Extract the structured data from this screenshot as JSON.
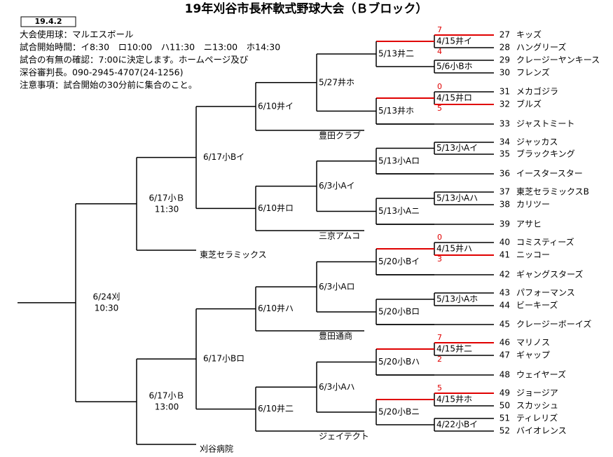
{
  "header": {
    "title": "19年刈谷市長杯軟式野球大会（Ｂブロック）",
    "date_box": "19.4.2",
    "notes": [
      "大会使用球：マルエスボール",
      "試合開始時間：イ8:30　ロ10:00　ハ11:30　ニ13:00　ホ14:30",
      "試合の有無の確認：7:00に決定します。ホームページ及び",
      "深谷審判長。090-2945-4707(24-1256)",
      "注意事項：試合開始の30分前に集合のこと。"
    ]
  },
  "teams": [
    {
      "number": 27,
      "name": "キッズ"
    },
    {
      "number": 28,
      "name": "ハングリーズ"
    },
    {
      "number": 29,
      "name": "クレージーヤンキース"
    },
    {
      "number": 30,
      "name": "フレンズ"
    },
    {
      "number": 31,
      "name": "メカゴジラ"
    },
    {
      "number": 32,
      "name": "ブルズ"
    },
    {
      "number": 33,
      "name": "ジャストミート"
    },
    {
      "number": 34,
      "name": "ジャッカス"
    },
    {
      "number": 35,
      "name": "ブラックキング"
    },
    {
      "number": 36,
      "name": "イースタースター"
    },
    {
      "number": 37,
      "name": "東芝セラミックスB"
    },
    {
      "number": 38,
      "name": "カリツー"
    },
    {
      "number": 39,
      "name": "アサヒ"
    },
    {
      "number": 40,
      "name": "コミスティーズ"
    },
    {
      "number": 41,
      "name": "ニッコー"
    },
    {
      "number": 42,
      "name": "ギャングスターズ"
    },
    {
      "number": 43,
      "name": "パフォーマンス"
    },
    {
      "number": 44,
      "name": "ビーキーズ"
    },
    {
      "number": 45,
      "name": "クレージーボーイズ"
    },
    {
      "number": 46,
      "name": "マリノス"
    },
    {
      "number": 47,
      "name": "ギャップ"
    },
    {
      "number": 48,
      "name": "ウェイヤーズ"
    },
    {
      "number": 49,
      "name": "ジョージア"
    },
    {
      "number": 50,
      "name": "スカッシュ"
    },
    {
      "number": 51,
      "name": "ティレリズ"
    },
    {
      "number": 52,
      "name": "バイオレンス"
    }
  ],
  "round1": [
    "4/15井イ",
    "5/6小Bホ",
    "4/15井ロ",
    "5/13小Aイ",
    "5/13小Aハ",
    "4/15井ハ",
    "5/13小Aホ",
    "4/15井二",
    "4/15井ホ",
    "4/22小Bイ"
  ],
  "scores": [
    {
      "top": 7,
      "bottom": 4
    },
    {
      "top": 0,
      "bottom": 5
    },
    {
      "top": 0,
      "bottom": 3
    },
    {
      "top": 7,
      "bottom": 2
    },
    {
      "top": 5
    }
  ],
  "round2": [
    "5/13井二",
    "5/13井ホ",
    "5/13小Aロ",
    "5/13小Aニ",
    "5/20小Bイ",
    "5/20小Bロ",
    "5/20小Bハ",
    "5/20小Bニ"
  ],
  "round3": [
    "5/27井ホ",
    "6/3小Aイ",
    "6/3小Aロ",
    "6/3小Aハ"
  ],
  "round4_entrants": [
    "豊田クラブ",
    "三京アムコ",
    "豊田通商",
    "ジェイテクト"
  ],
  "round4": [
    "6/10井イ",
    "6/10井ロ",
    "6/10井ハ",
    "6/10井二"
  ],
  "round5": [
    "6/17小Bイ",
    "6/17小Bロ"
  ],
  "round6_entrants": [
    "東芝セラミックス",
    "刈谷病院"
  ],
  "round6": [
    {
      "date": "6/17小Ｂ",
      "time": "11:30"
    },
    {
      "date": "6/17小Ｂ",
      "time": "13:00"
    }
  ],
  "final": {
    "date": "6/24刈",
    "time": "10:30"
  }
}
